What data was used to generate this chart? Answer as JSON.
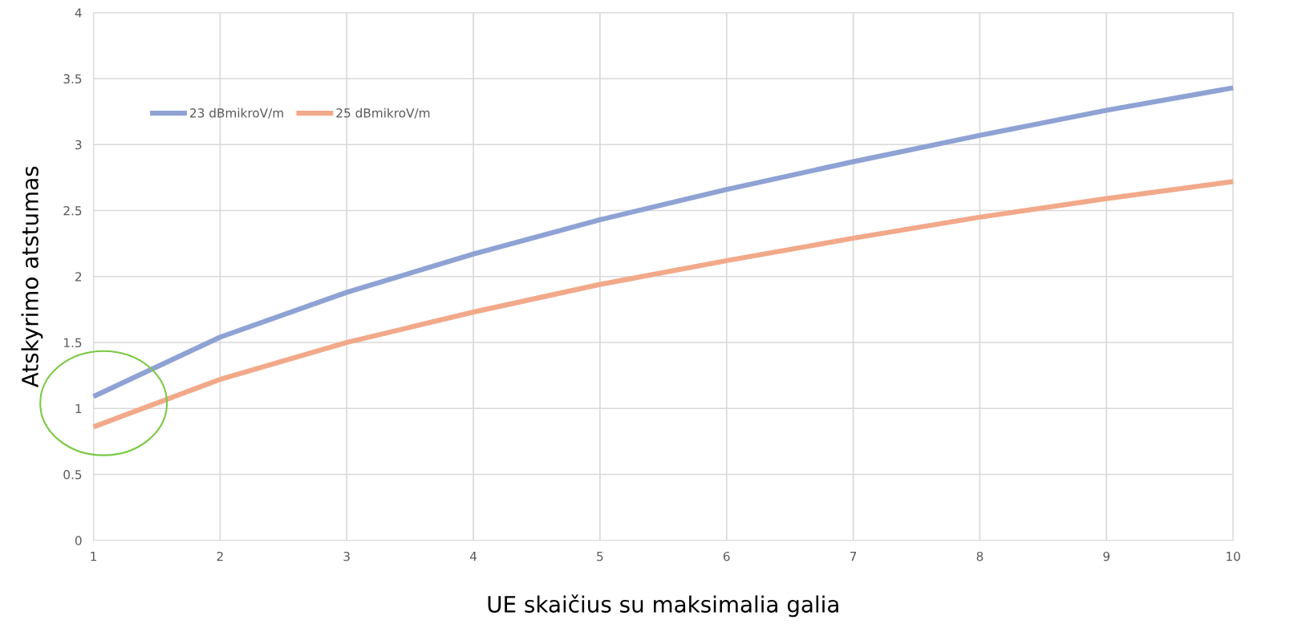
{
  "chart_data": {
    "type": "line",
    "xlabel": "UE skaičius su maksimalia galia",
    "ylabel": "Atskyrimo atstumas",
    "x": [
      1,
      2,
      3,
      4,
      5,
      6,
      7,
      8,
      9,
      10
    ],
    "series": [
      {
        "name": "23 dBmikroV/m",
        "color": "#8fa2d4",
        "values": [
          1.09,
          1.54,
          1.88,
          2.17,
          2.43,
          2.66,
          2.87,
          3.07,
          3.26,
          3.43
        ]
      },
      {
        "name": "25 dBmikroV/m",
        "color": "#f2a98a",
        "values": [
          0.86,
          1.22,
          1.5,
          1.73,
          1.94,
          2.12,
          2.29,
          2.45,
          2.59,
          2.72
        ]
      }
    ],
    "xlim": [
      1,
      10
    ],
    "xticks": [
      1,
      2,
      3,
      4,
      5,
      6,
      7,
      8,
      9,
      10
    ],
    "ylim": [
      0,
      4
    ],
    "yticks": [
      0,
      0.5,
      1,
      1.5,
      2,
      2.5,
      3,
      3.5,
      4
    ],
    "grid": true,
    "legend": "top left",
    "marker": "none",
    "line_style": "solid"
  }
}
